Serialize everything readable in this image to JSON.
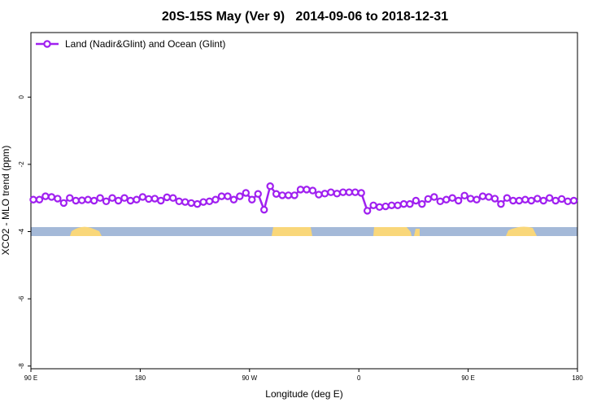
{
  "chart_data": {
    "type": "line",
    "title": "20S-15S May (Ver 9)   2014-09-06 to 2018-12-31",
    "xlabel": "Longitude (deg E)",
    "ylabel": "XCO2 - MLO trend (ppm)",
    "x": [
      92,
      97,
      102,
      107,
      112,
      117,
      122,
      127,
      132,
      137,
      142,
      147,
      152,
      157,
      162,
      167,
      172,
      177,
      182,
      187,
      192,
      197,
      202,
      207,
      212,
      217,
      222,
      227,
      232,
      237,
      242,
      247,
      252,
      257,
      262,
      267,
      272,
      277,
      282,
      287,
      292,
      297,
      302,
      307,
      312,
      317,
      322,
      327,
      332,
      337,
      342,
      347,
      352,
      357,
      362,
      367,
      372,
      377,
      382,
      387,
      392,
      397,
      402,
      407,
      412,
      417,
      422,
      427,
      432,
      437,
      442,
      447,
      452,
      457,
      462,
      467,
      472,
      477,
      482,
      487,
      492,
      497,
      502,
      507,
      512,
      517,
      522,
      527,
      532,
      537
    ],
    "series": [
      {
        "name": "Land (Nadir&Glint) and Ocean (Glint)",
        "color": "#a020f0",
        "values": [
          -3.05,
          -3.05,
          -2.95,
          -2.97,
          -3.02,
          -3.15,
          -3.0,
          -3.08,
          -3.07,
          -3.05,
          -3.08,
          -3.0,
          -3.1,
          -3.0,
          -3.08,
          -3.0,
          -3.08,
          -3.05,
          -2.97,
          -3.03,
          -3.02,
          -3.08,
          -2.98,
          -3.0,
          -3.1,
          -3.12,
          -3.15,
          -3.18,
          -3.12,
          -3.1,
          -3.05,
          -2.95,
          -2.95,
          -3.05,
          -2.95,
          -2.85,
          -3.05,
          -2.88,
          -3.35,
          -2.65,
          -2.88,
          -2.92,
          -2.92,
          -2.92,
          -2.75,
          -2.75,
          -2.78,
          -2.9,
          -2.87,
          -2.83,
          -2.87,
          -2.83,
          -2.83,
          -2.83,
          -2.85,
          -3.38,
          -3.22,
          -3.27,
          -3.25,
          -3.22,
          -3.22,
          -3.18,
          -3.18,
          -3.08,
          -3.18,
          -3.03,
          -2.97,
          -3.1,
          -3.05,
          -3.0,
          -3.08,
          -2.93,
          -3.02,
          -3.05,
          -2.95,
          -2.97,
          -3.02,
          -3.18,
          -3.0,
          -3.08,
          -3.08,
          -3.05,
          -3.08,
          -3.02,
          -3.08,
          -3.0,
          -3.08,
          -3.03,
          -3.1,
          -3.08
        ]
      }
    ],
    "xlim": [
      90,
      540
    ],
    "xticks": [
      {
        "value": 90,
        "label": "90 E"
      },
      180,
      {
        "value": 270,
        "label": "90 W"
      },
      {
        "value": 360,
        "label": "0"
      },
      {
        "value": 450,
        "label": "90 E"
      },
      {
        "value": 540,
        "label": "180"
      }
    ],
    "ylim": [
      -8.08,
      1.92
    ],
    "yticks": [
      0,
      -2,
      -4,
      -6,
      -8
    ],
    "legend": "top-left"
  }
}
